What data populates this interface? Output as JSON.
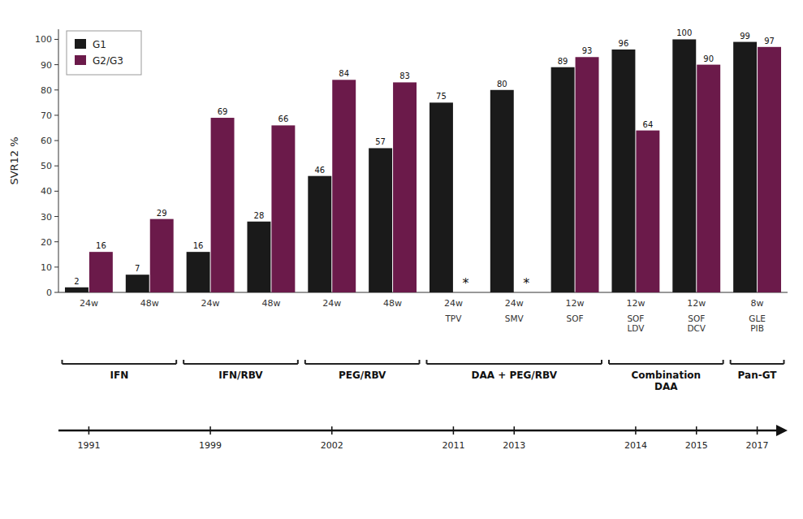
{
  "chart_data": {
    "type": "bar",
    "categories": [
      "24w",
      "48w",
      "24w",
      "48w",
      "24w",
      "48w",
      "24w",
      "24w",
      "12w",
      "12w",
      "12w",
      "8w"
    ],
    "series": [
      {
        "name": "G1",
        "color": "#1a1a1a",
        "values": [
          2,
          7,
          16,
          28,
          46,
          57,
          75,
          80,
          89,
          96,
          100,
          99
        ]
      },
      {
        "name": "G2/G3",
        "color": "#6b1a4a",
        "values": [
          16,
          29,
          69,
          66,
          84,
          83,
          null,
          null,
          93,
          64,
          90,
          97
        ]
      }
    ],
    "ylabel": "SVR12 %",
    "ylim": [
      0,
      104
    ],
    "yticks": [
      0,
      10,
      20,
      30,
      40,
      50,
      60,
      70,
      80,
      90,
      100
    ],
    "grid": false,
    "legend": "upper left",
    "data_labels": true,
    "missing_label": "*",
    "drug_labels": [
      null,
      null,
      null,
      null,
      null,
      null,
      "TPV",
      "SMV",
      "SOF",
      "SOF\nLDV",
      "SOF\nDCV",
      "GLE\nPIB"
    ],
    "eras": [
      {
        "name": "IFN",
        "categories": [
          0,
          1
        ]
      },
      {
        "name": "IFN/RBV",
        "categories": [
          2,
          3
        ]
      },
      {
        "name": "PEG/RBV",
        "categories": [
          4,
          5
        ]
      },
      {
        "name": "DAA + PEG/RBV",
        "categories": [
          6,
          7,
          8
        ]
      },
      {
        "name": "Combination\nDAA",
        "categories": [
          9,
          10
        ]
      },
      {
        "name": "Pan-GT",
        "categories": [
          11
        ]
      }
    ],
    "timeline_years": [
      {
        "label": "1991",
        "category": 0
      },
      {
        "label": "1999",
        "category": 2
      },
      {
        "label": "2002",
        "category": 4
      },
      {
        "label": "2011",
        "category": 6
      },
      {
        "label": "2013",
        "category": 7
      },
      {
        "label": "2014",
        "category": 9
      },
      {
        "label": "2015",
        "category": 10
      },
      {
        "label": "2017",
        "category": 11
      }
    ]
  }
}
